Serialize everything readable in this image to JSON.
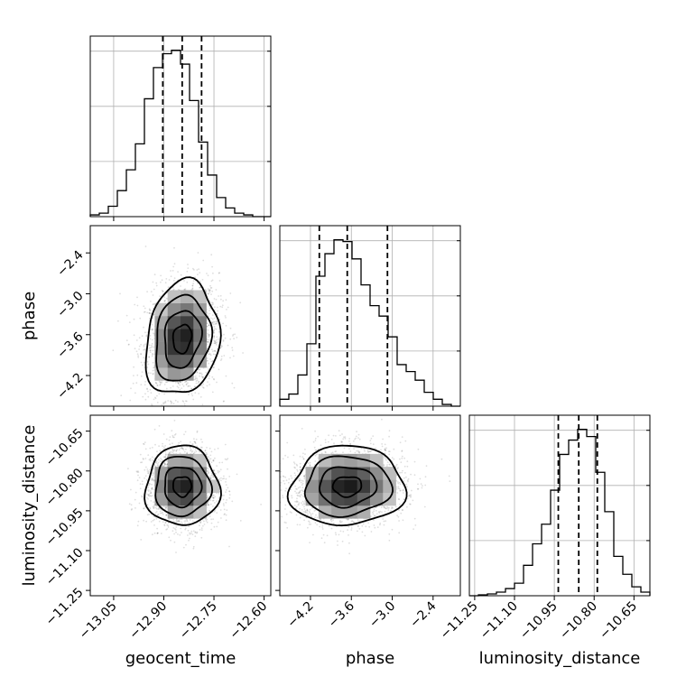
{
  "chart_data": {
    "type": "corner",
    "parameters": [
      {
        "name": "geocent_time",
        "label": "geocent_time",
        "range": [
          -13.12,
          -12.58
        ],
        "ticks": [
          -13.05,
          -12.9,
          -12.75,
          -12.6
        ],
        "tick_labels": [
          "−13.05",
          "−12.90",
          "−12.75",
          "−12.60"
        ],
        "median": -12.845,
        "sigma": 0.055,
        "quantiles": [
          -12.903,
          -12.845,
          -12.787
        ]
      },
      {
        "name": "phase",
        "label": "phase",
        "range": [
          -4.65,
          -2.0
        ],
        "ticks": [
          -4.2,
          -3.6,
          -3.0,
          -2.4
        ],
        "tick_labels": [
          "−4.2",
          "−3.6",
          "−3.0",
          "−2.4"
        ],
        "median": -3.66,
        "sigma": 0.42,
        "quantiles": [
          -4.07,
          -3.66,
          -3.07
        ]
      },
      {
        "name": "luminosity_distance",
        "label": "luminosity_distance",
        "range": [
          -11.27,
          -10.59
        ],
        "ticks": [
          -11.25,
          -11.1,
          -10.95,
          -10.8,
          -10.65
        ],
        "tick_labels": [
          "−11.25",
          "−11.10",
          "−10.95",
          "−10.80",
          "−10.65"
        ],
        "median": -10.858,
        "sigma": 0.075,
        "quantiles": [
          -10.935,
          -10.858,
          -10.788
        ]
      }
    ],
    "diag_hist": [
      {
        "param": "geocent_time",
        "bin_edges": [
          -13.12,
          -13.093,
          -13.066,
          -13.039,
          -13.012,
          -12.985,
          -12.958,
          -12.931,
          -12.904,
          -12.877,
          -12.85,
          -12.823,
          -12.796,
          -12.769,
          -12.742,
          -12.715,
          -12.688,
          -12.661,
          -12.634,
          -12.607,
          -12.58
        ],
        "counts": [
          0.01,
          0.02,
          0.06,
          0.15,
          0.27,
          0.42,
          0.68,
          0.86,
          0.94,
          0.96,
          0.88,
          0.67,
          0.43,
          0.24,
          0.11,
          0.05,
          0.02,
          0.01,
          0.0,
          0.0
        ]
      },
      {
        "param": "phase",
        "bin_edges": [
          -4.65,
          -4.5175,
          -4.385,
          -4.2525,
          -4.12,
          -3.9875,
          -3.855,
          -3.7225,
          -3.59,
          -3.4575,
          -3.325,
          -3.1925,
          -3.06,
          -2.9275,
          -2.795,
          -2.6625,
          -2.53,
          -2.3975,
          -2.265,
          -2.1325,
          -2.0
        ],
        "counts": [
          0.04,
          0.07,
          0.18,
          0.36,
          0.75,
          0.88,
          0.96,
          0.95,
          0.85,
          0.7,
          0.58,
          0.52,
          0.4,
          0.24,
          0.2,
          0.15,
          0.08,
          0.04,
          0.01,
          0.0
        ]
      },
      {
        "param": "luminosity_distance",
        "bin_edges": [
          -11.27,
          -11.236,
          -11.202,
          -11.168,
          -11.134,
          -11.1,
          -11.066,
          -11.032,
          -10.998,
          -10.964,
          -10.93,
          -10.896,
          -10.862,
          -10.828,
          -10.794,
          -10.76,
          -10.726,
          -10.692,
          -10.658,
          -10.624,
          -10.59
        ],
        "counts": [
          0.0,
          0.005,
          0.01,
          0.02,
          0.04,
          0.07,
          0.17,
          0.29,
          0.4,
          0.59,
          0.79,
          0.87,
          0.93,
          0.89,
          0.69,
          0.47,
          0.22,
          0.12,
          0.05,
          0.02
        ]
      }
    ],
    "pairs": [
      {
        "x": "geocent_time",
        "y": "phase",
        "corr": 0.15,
        "contour_levels": [
          0.118,
          0.393,
          0.675,
          0.864
        ]
      },
      {
        "x": "geocent_time",
        "y": "luminosity_distance",
        "corr": 0.0,
        "contour_levels": [
          0.118,
          0.393,
          0.675,
          0.864
        ]
      },
      {
        "x": "phase",
        "y": "luminosity_distance",
        "corr": 0.05,
        "contour_levels": [
          0.118,
          0.393,
          0.675,
          0.864
        ]
      }
    ],
    "grid": true,
    "quantile_lines": "dashed"
  }
}
